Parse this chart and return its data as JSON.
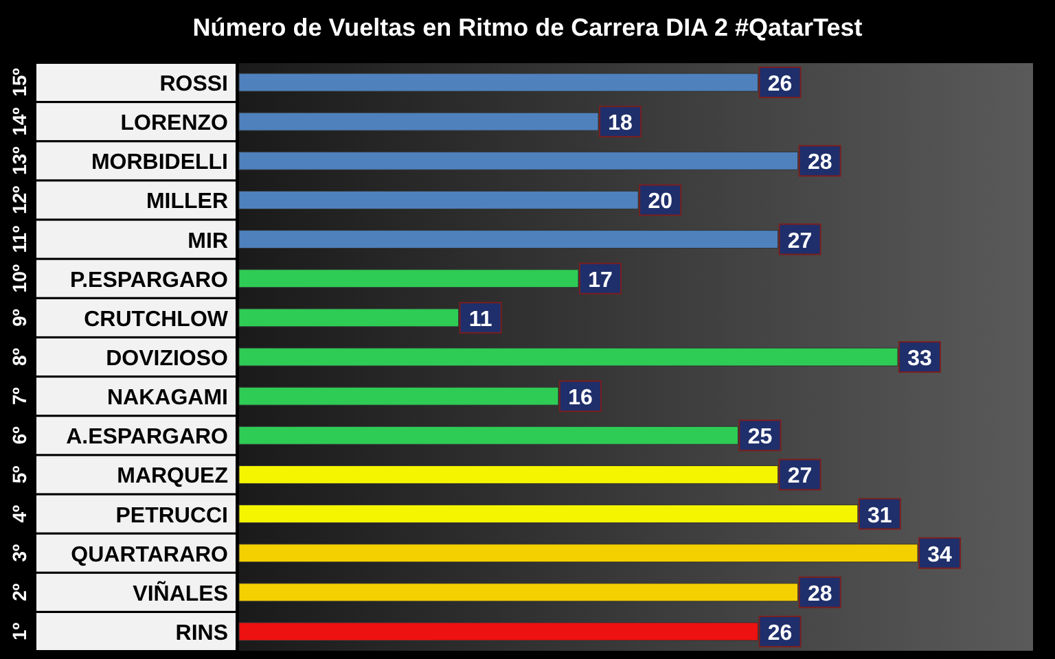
{
  "chart_data": {
    "type": "bar",
    "orientation": "horizontal",
    "title": "Número de Vueltas en Ritmo de Carrera DIA 2 #QatarTest",
    "categories": [
      "ROSSI",
      "LORENZO",
      "MORBIDELLI",
      "MILLER",
      "MIR",
      "P.ESPARGARO",
      "CRUTCHLOW",
      "DOVIZIOSO",
      "NAKAGAMI",
      "A.ESPARGARO",
      "MARQUEZ",
      "PETRUCCI",
      "QUARTARARO",
      "VIÑALES",
      "RINS"
    ],
    "values": [
      26,
      18,
      28,
      20,
      27,
      17,
      11,
      33,
      16,
      25,
      27,
      31,
      34,
      28,
      26
    ],
    "colors": [
      "#4f81bd",
      "#4f81bd",
      "#4f81bd",
      "#4f81bd",
      "#4f81bd",
      "#2ecc55",
      "#2ecc55",
      "#2ecc55",
      "#2ecc55",
      "#2ecc55",
      "#f5f500",
      "#f5f500",
      "#f5d000",
      "#f5d000",
      "#ee1111"
    ],
    "annotations": [
      "15º",
      "14º",
      "13º",
      "12º",
      "11º",
      "10º",
      "9º",
      "8º",
      "7º",
      "6º",
      "5º",
      "4º",
      "3º",
      "2º",
      "1º"
    ],
    "data_labels": true
  }
}
